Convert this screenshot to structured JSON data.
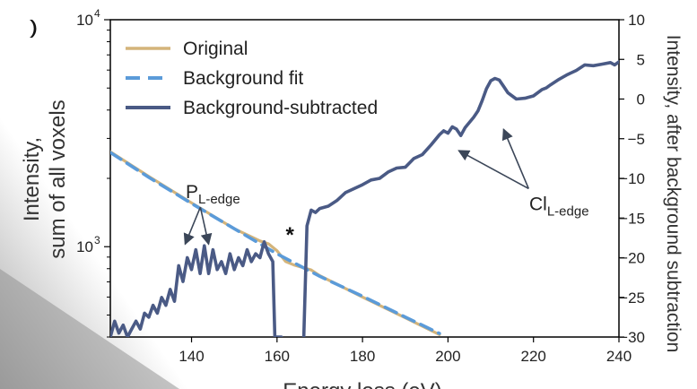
{
  "colors": {
    "original": "#d4b47a",
    "background_fit": "#5b9bd9",
    "subtracted": "#4a5a85",
    "axis": "#000000",
    "arrow": "#3b4658",
    "page_gradient_dark": "#8c8c8c",
    "page_gradient_light": "#f2f2f2"
  },
  "chart_data": {
    "type": "line",
    "title": "",
    "xlabel": "Energy loss (eV)",
    "ylabel_left": "Intensity, sum of all voxels",
    "ylabel_right": "Intensity, after background subtraction",
    "xlim": [
      121,
      240
    ],
    "ylim_left_log": [
      400,
      10000
    ],
    "ylim_right": [
      -30,
      10
    ],
    "x_ticks": [
      140,
      160,
      180,
      200,
      220,
      240
    ],
    "y_left_ticks": [
      {
        "value": 1000,
        "label": "10",
        "exp": "3"
      },
      {
        "value": 10000,
        "label": "10",
        "exp": "4"
      }
    ],
    "y_right_ticks": [
      10,
      5,
      0,
      -5,
      -10,
      -15,
      -20,
      -25,
      -30
    ],
    "legend": [
      {
        "key": "original",
        "label": "Original",
        "style": "solid"
      },
      {
        "key": "background_fit",
        "label": "Background fit",
        "style": "dashed"
      },
      {
        "key": "subtracted",
        "label": "Background-subtracted",
        "style": "solid-thick"
      }
    ],
    "series": [
      {
        "name": "Original",
        "axis": "left",
        "points": [
          [
            121,
            2620
          ],
          [
            130,
            2040
          ],
          [
            140,
            1560
          ],
          [
            150,
            1200
          ],
          [
            156,
            1060
          ],
          [
            158,
            1030
          ],
          [
            160,
            960
          ],
          [
            162,
            860
          ],
          [
            164,
            830
          ],
          [
            166,
            810
          ],
          [
            168,
            790
          ],
          [
            170,
            745
          ],
          [
            180,
            600
          ],
          [
            190,
            486
          ],
          [
            198,
            410
          ]
        ]
      },
      {
        "name": "Background fit",
        "axis": "left",
        "points": [
          [
            121,
            2600
          ],
          [
            130,
            2020
          ],
          [
            140,
            1550
          ],
          [
            150,
            1200
          ],
          [
            160,
            930
          ],
          [
            170,
            740
          ],
          [
            180,
            605
          ],
          [
            190,
            490
          ],
          [
            198,
            415
          ]
        ]
      },
      {
        "name": "Background-subtracted",
        "axis": "right",
        "points": [
          [
            121,
            -30
          ],
          [
            122,
            -28
          ],
          [
            123,
            -29.5
          ],
          [
            124,
            -28.5
          ],
          [
            125,
            -30
          ],
          [
            126,
            -29
          ],
          [
            127,
            -28
          ],
          [
            128,
            -29
          ],
          [
            129,
            -27
          ],
          [
            130,
            -27.5
          ],
          [
            131,
            -26
          ],
          [
            132,
            -27
          ],
          [
            133,
            -25
          ],
          [
            134,
            -26
          ],
          [
            135,
            -24
          ],
          [
            136,
            -25.5
          ],
          [
            137,
            -21
          ],
          [
            138,
            -23
          ],
          [
            139,
            -20
          ],
          [
            140,
            -21.5
          ],
          [
            141,
            -19
          ],
          [
            142,
            -22
          ],
          [
            143,
            -18.5
          ],
          [
            144,
            -22
          ],
          [
            145,
            -19
          ],
          [
            146,
            -21.5
          ],
          [
            147,
            -20.5
          ],
          [
            148,
            -22
          ],
          [
            149,
            -19.5
          ],
          [
            150,
            -21.5
          ],
          [
            151,
            -20
          ],
          [
            152,
            -21
          ],
          [
            153,
            -19
          ],
          [
            154,
            -20.5
          ],
          [
            155,
            -19.5
          ],
          [
            156,
            -20
          ],
          [
            157,
            -18
          ],
          [
            158,
            -19.5
          ],
          [
            159,
            -20.5
          ],
          [
            159.5,
            -30
          ],
          [
            161,
            -30
          ],
          [
            161.8,
            -35
          ],
          [
            166,
            -35
          ],
          [
            167,
            -16
          ],
          [
            168,
            -14
          ],
          [
            169,
            -14.3
          ],
          [
            170,
            -13.8
          ],
          [
            172,
            -13.5
          ],
          [
            174,
            -12.8
          ],
          [
            176,
            -11.8
          ],
          [
            178,
            -11.3
          ],
          [
            180,
            -10.8
          ],
          [
            182,
            -10.2
          ],
          [
            184,
            -10
          ],
          [
            186,
            -9.2
          ],
          [
            188,
            -8.7
          ],
          [
            190,
            -8.6
          ],
          [
            192,
            -7.5
          ],
          [
            194,
            -7
          ],
          [
            196,
            -5.8
          ],
          [
            198,
            -4.5
          ],
          [
            199,
            -4
          ],
          [
            200,
            -4.3
          ],
          [
            201,
            -3.5
          ],
          [
            202,
            -3.8
          ],
          [
            203,
            -4.6
          ],
          [
            204,
            -3.6
          ],
          [
            206,
            -2.3
          ],
          [
            207,
            -1.5
          ],
          [
            208,
            -0.2
          ],
          [
            209,
            1.3
          ],
          [
            210,
            2.3
          ],
          [
            211,
            2.6
          ],
          [
            212,
            2.4
          ],
          [
            213,
            1.6
          ],
          [
            214,
            0.8
          ],
          [
            215,
            0.4
          ],
          [
            216,
            0
          ],
          [
            218,
            0.1
          ],
          [
            220,
            0.4
          ],
          [
            222,
            1.2
          ],
          [
            223,
            1.4
          ],
          [
            224,
            1.8
          ],
          [
            226,
            2.5
          ],
          [
            228,
            3.1
          ],
          [
            230,
            3.6
          ],
          [
            232,
            4.3
          ],
          [
            234,
            4.2
          ],
          [
            236,
            4.4
          ],
          [
            238,
            4.6
          ],
          [
            239,
            4.3
          ],
          [
            240,
            4.7
          ]
        ]
      }
    ],
    "annotations": [
      {
        "label": "P",
        "sub": "L-edge",
        "anchor_x": 145,
        "anchor_y": -12.5,
        "arrow_targets": [
          [
            138.5,
            -18.3
          ],
          [
            144,
            -18.3
          ]
        ]
      },
      {
        "label": "Cl",
        "sub": "L-edge",
        "anchor_x": 226,
        "anchor_y": -14,
        "arrow_targets": [
          [
            202.5,
            -6.5
          ],
          [
            213,
            -3.8
          ]
        ]
      },
      {
        "label": "*",
        "sub": "",
        "anchor_x": 163,
        "anchor_y": -18,
        "arrow_targets": []
      }
    ]
  }
}
